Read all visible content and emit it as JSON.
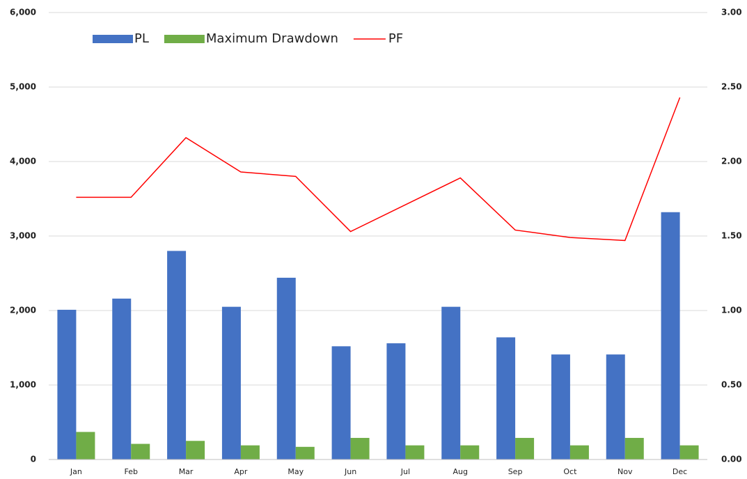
{
  "chart_data": {
    "type": "bar",
    "categories": [
      "Jan",
      "Feb",
      "Mar",
      "Apr",
      "May",
      "Jun",
      "Jul",
      "Aug",
      "Sep",
      "Oct",
      "Nov",
      "Dec"
    ],
    "series": [
      {
        "name": "PL",
        "color": "#4472c4",
        "values": [
          2010,
          2160,
          2800,
          2050,
          2440,
          1520,
          1560,
          2050,
          1640,
          1410,
          1410,
          3320
        ]
      },
      {
        "name": "Maximum Drawdown",
        "color": "#70ad47",
        "values": [
          370,
          210,
          250,
          190,
          170,
          290,
          190,
          190,
          290,
          190,
          290,
          190
        ]
      },
      {
        "name": "PF",
        "color": "#ff0000",
        "type": "line",
        "axis": "y2",
        "values": [
          1.76,
          1.76,
          2.16,
          1.93,
          1.9,
          1.53,
          1.71,
          1.89,
          1.54,
          1.49,
          1.47,
          2.43
        ]
      }
    ],
    "ylim": [
      0,
      6000
    ],
    "yticks": [
      0,
      {
        "value": 1000,
        "label": "1,000"
      },
      {
        "value": 2000,
        "label": "2,000"
      },
      {
        "value": 3000,
        "label": "3,000"
      },
      {
        "value": 4000,
        "label": "4,000"
      },
      {
        "value": 5000,
        "label": "5,000"
      },
      {
        "value": 6000,
        "label": "6,000"
      }
    ],
    "y2lim": [
      0,
      3
    ],
    "y2ticks": [
      {
        "value": 0,
        "label": "0.00"
      },
      {
        "value": 0.5,
        "label": "0.50"
      },
      {
        "value": 1,
        "label": "1.00"
      },
      {
        "value": 1.5,
        "label": "1.50"
      },
      {
        "value": 2,
        "label": "2.00"
      },
      {
        "value": 2.5,
        "label": "2.50"
      },
      {
        "value": 3,
        "label": "3.00"
      }
    ],
    "grid": true,
    "legend": "top-left"
  }
}
